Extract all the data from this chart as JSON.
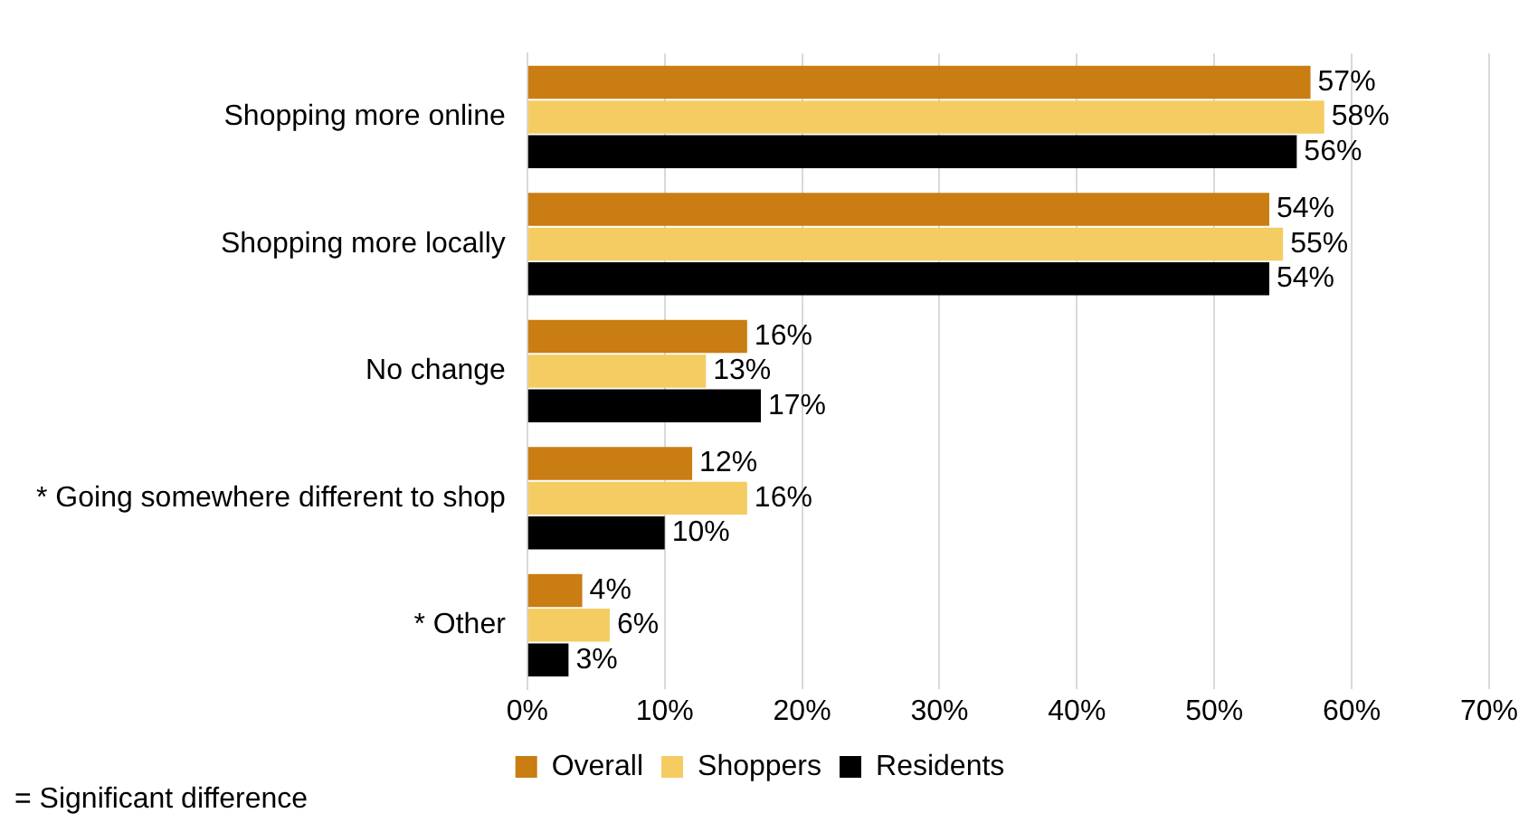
{
  "chart_data": {
    "type": "bar",
    "orientation": "horizontal",
    "categories": [
      "Shopping more online",
      "Shopping more locally",
      "No change",
      "* Going somewhere different to shop",
      "* Other"
    ],
    "series": [
      {
        "name": "Overall",
        "color": "#c97d12",
        "values": [
          57,
          54,
          16,
          12,
          4
        ],
        "value_labels": [
          "57%",
          "54%",
          "16%",
          "12%",
          "4%"
        ]
      },
      {
        "name": "Shoppers",
        "color": "#f4cc62",
        "values": [
          58,
          55,
          13,
          16,
          6
        ],
        "value_labels": [
          "58%",
          "55%",
          "13%",
          "16%",
          "6%"
        ]
      },
      {
        "name": "Residents",
        "color": "#000000",
        "values": [
          56,
          54,
          17,
          10,
          3
        ],
        "value_labels": [
          "56%",
          "54%",
          "17%",
          "10%",
          "3%"
        ]
      }
    ],
    "xlim": [
      0,
      70
    ],
    "xticks": [
      {
        "value": 0,
        "label": "0%"
      },
      {
        "value": 10,
        "label": "10%"
      },
      {
        "value": 20,
        "label": "20%"
      },
      {
        "value": 30,
        "label": "30%"
      },
      {
        "value": 40,
        "label": "40%"
      },
      {
        "value": 50,
        "label": "50%"
      },
      {
        "value": 60,
        "label": "60%"
      },
      {
        "value": 70,
        "label": "70%"
      }
    ],
    "grid": "x",
    "legend": "bottom",
    "annotations": [
      "= Significant difference"
    ]
  }
}
